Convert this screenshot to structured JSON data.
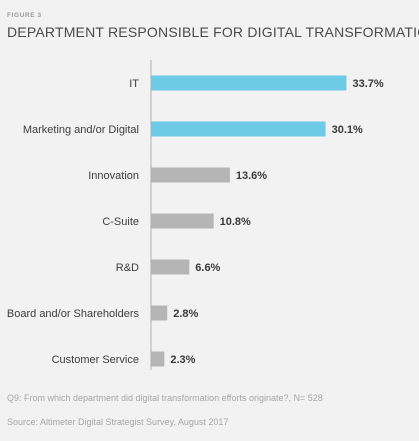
{
  "figure_label": "FIGURE 3",
  "chart_data": {
    "type": "bar",
    "orientation": "horizontal",
    "title": "DEPARTMENT RESPONSIBLE FOR DIGITAL TRANSFORMATION",
    "categories": [
      "IT",
      "Marketing and/or Digital",
      "Innovation",
      "C-Suite",
      "R&D",
      "Board and/or Shareholders",
      "Customer Service"
    ],
    "values": [
      33.7,
      30.1,
      13.6,
      10.8,
      6.6,
      2.8,
      2.3
    ],
    "value_labels": [
      "33.7%",
      "30.1%",
      "13.6%",
      "10.8%",
      "6.6%",
      "2.8%",
      "2.3%"
    ],
    "highlight_color": "#6dcbe8",
    "default_color": "#b5b5b5",
    "highlighted": [
      true,
      true,
      false,
      false,
      false,
      false,
      false
    ],
    "grid": false,
    "legend": "none"
  },
  "question": "Q9: From which department did digital transformation efforts originate?, N= 528",
  "source": "Source: Altimeter Digital Strategist Survey, August 2017"
}
